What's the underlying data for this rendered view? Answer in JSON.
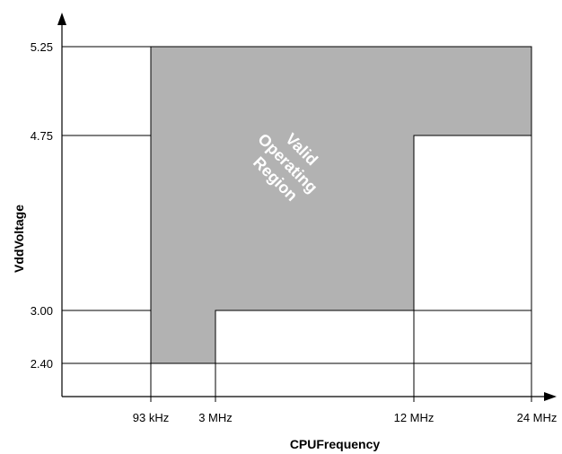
{
  "chart_data": {
    "type": "area",
    "xlabel": "CPUFrequency",
    "ylabel": "VddVoltage",
    "x_categories": [
      "93 kHz",
      "3 MHz",
      "12 MHz",
      "24 MHz"
    ],
    "y_ticks": [
      {
        "value": 2.4,
        "label": "2.40"
      },
      {
        "value": 3.0,
        "label": "3.00"
      },
      {
        "value": 4.75,
        "label": "4.75"
      },
      {
        "value": 5.25,
        "label": "5.25"
      }
    ],
    "region": {
      "label_lines": [
        "Valid",
        "Operating",
        "Region"
      ],
      "fill_color": "#b2b2b2",
      "boundary": [
        {
          "x": "93 kHz",
          "y": 2.4
        },
        {
          "x": "3 MHz",
          "y": 2.4
        },
        {
          "x": "3 MHz",
          "y": 3.0
        },
        {
          "x": "12 MHz",
          "y": 3.0
        },
        {
          "x": "12 MHz",
          "y": 4.75
        },
        {
          "x": "24 MHz",
          "y": 4.75
        },
        {
          "x": "24 MHz",
          "y": 5.25
        },
        {
          "x": "93 kHz",
          "y": 5.25
        }
      ]
    },
    "grid": true,
    "axis_color": "#000000"
  }
}
